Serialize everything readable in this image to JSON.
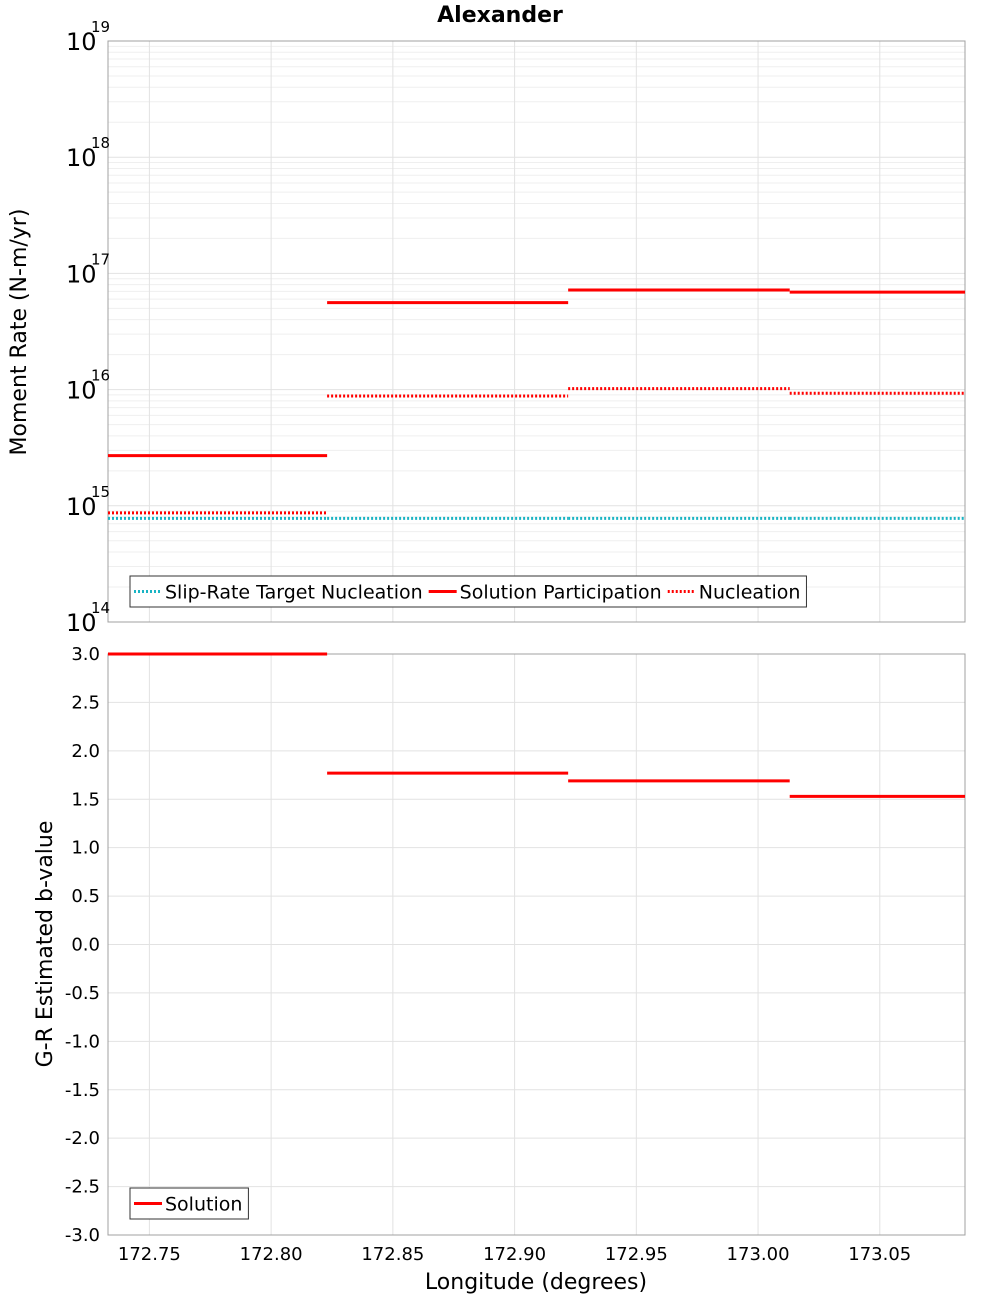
{
  "chart_data": [
    {
      "type": "line",
      "title": "Alexander",
      "ylabel": "Moment Rate (N-m/yr)",
      "xlabel": "",
      "yscale": "log",
      "ylim": [
        100000000000000.0,
        1e+19
      ],
      "xlim": [
        172.733,
        173.085
      ],
      "y_ticks": [
        {
          "base": "10",
          "exp": "14",
          "value": 100000000000000.0
        },
        {
          "base": "10",
          "exp": "15",
          "value": 1000000000000000.0
        },
        {
          "base": "10",
          "exp": "16",
          "value": 1e+16
        },
        {
          "base": "10",
          "exp": "17",
          "value": 1e+17
        },
        {
          "base": "10",
          "exp": "18",
          "value": 1e+18
        },
        {
          "base": "10",
          "exp": "19",
          "value": 1e+19
        }
      ],
      "grid": true,
      "legend_position": "bottom-left",
      "series": [
        {
          "name": "Slip-Rate Target Nucleation",
          "color": "#19b4c4",
          "style": "dotted",
          "segments": [
            {
              "x0": 172.733,
              "x1": 172.823,
              "y": 780000000000000.0
            },
            {
              "x0": 172.823,
              "x1": 172.922,
              "y": 780000000000000.0
            },
            {
              "x0": 172.922,
              "x1": 173.013,
              "y": 780000000000000.0
            },
            {
              "x0": 173.013,
              "x1": 173.085,
              "y": 780000000000000.0
            }
          ]
        },
        {
          "name": "Solution Participation",
          "color": "#ff0000",
          "style": "solid",
          "segments": [
            {
              "x0": 172.733,
              "x1": 172.823,
              "y": 2700000000000000.0
            },
            {
              "x0": 172.823,
              "x1": 172.922,
              "y": 5.6e+16
            },
            {
              "x0": 172.922,
              "x1": 173.013,
              "y": 7.2e+16
            },
            {
              "x0": 173.013,
              "x1": 173.085,
              "y": 6.9e+16
            }
          ]
        },
        {
          "name": "Nucleation",
          "color": "#ff0000",
          "style": "dotted",
          "segments": [
            {
              "x0": 172.733,
              "x1": 172.823,
              "y": 870000000000000.0
            },
            {
              "x0": 172.823,
              "x1": 172.922,
              "y": 8800000000000000.0
            },
            {
              "x0": 172.922,
              "x1": 173.013,
              "y": 1.02e+16
            },
            {
              "x0": 173.013,
              "x1": 173.085,
              "y": 9300000000000000.0
            }
          ]
        }
      ]
    },
    {
      "type": "line",
      "title": "",
      "ylabel": "G-R Estimated b-value",
      "xlabel": "Longitude (degrees)",
      "ylim": [
        -3.0,
        3.0
      ],
      "xlim": [
        172.733,
        173.085
      ],
      "y_ticks": [
        "3.0",
        "2.5",
        "2.0",
        "1.5",
        "1.0",
        "0.5",
        "0.0",
        "-0.5",
        "-1.0",
        "-1.5",
        "-2.0",
        "-2.5",
        "-3.0"
      ],
      "x_ticks": [
        "172.75",
        "172.80",
        "172.85",
        "172.90",
        "172.95",
        "173.00",
        "173.05"
      ],
      "grid": true,
      "legend_position": "bottom-left",
      "series": [
        {
          "name": "Solution",
          "color": "#ff0000",
          "style": "solid",
          "segments": [
            {
              "x0": 172.733,
              "x1": 172.823,
              "y": 3.0
            },
            {
              "x0": 172.823,
              "x1": 172.922,
              "y": 1.77
            },
            {
              "x0": 172.922,
              "x1": 173.013,
              "y": 1.69
            },
            {
              "x0": 173.013,
              "x1": 173.085,
              "y": 1.53
            }
          ]
        }
      ]
    }
  ]
}
